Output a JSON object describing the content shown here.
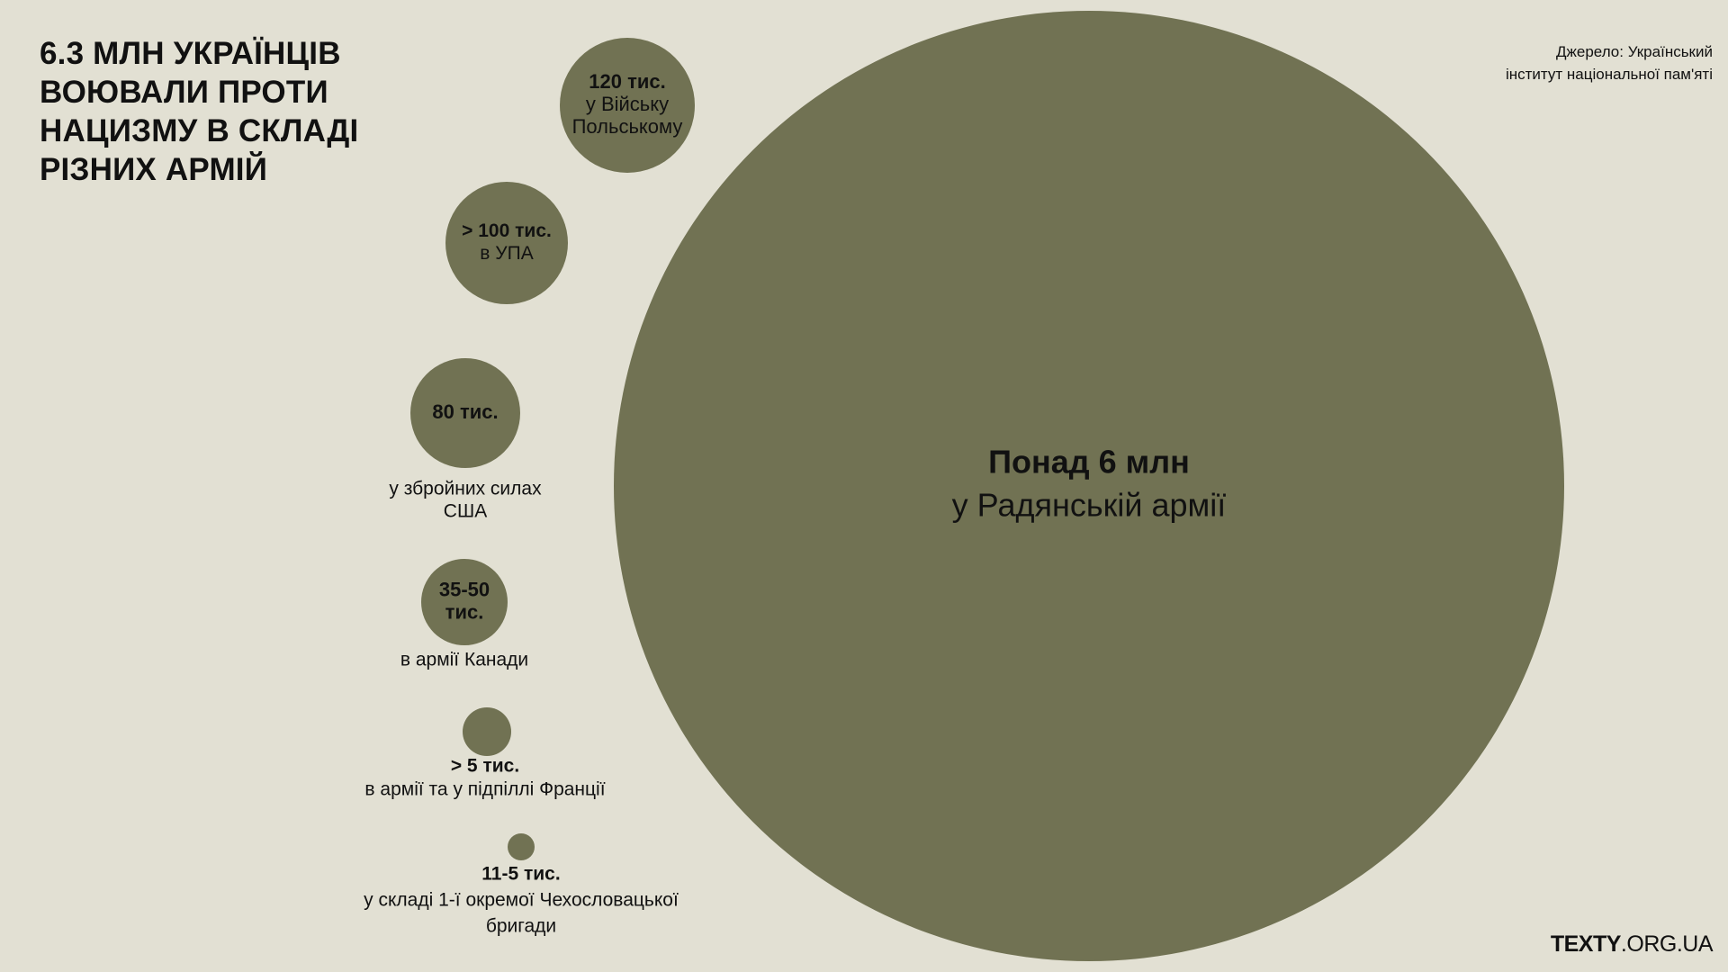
{
  "header": {
    "title": "6.3 МЛН УКРАЇНЦІВ\nВОЮВАЛИ ПРОТИ\nНАЦИЗМУ В СКЛАДІ\nРІЗНИХ АРМІЙ",
    "source": "Джерело: Український\nінститут національної пам'яті"
  },
  "brand": {
    "bold": "TEXTY",
    "normal": ".ORG.UA"
  },
  "colors": {
    "background": "#e2e0d3",
    "bubble": "#717253",
    "text": "#111111"
  },
  "chart_data": {
    "type": "bubble",
    "unit": "тис.",
    "items": [
      {
        "value_label": "Понад 6 млн",
        "label": "у Радянській армії",
        "value": 6000000
      },
      {
        "value_label": "120 тис.",
        "label": "у Війську Польському",
        "value": 120000
      },
      {
        "value_label": "> 100 тис.",
        "label": "в УПА",
        "value": 100000
      },
      {
        "value_label": "80 тис.",
        "label": "у збройних силах США",
        "value": 80000
      },
      {
        "value_label": "35-50 тис.",
        "label": "в армії Канади",
        "value": 50000
      },
      {
        "value_label": "> 5 тис.",
        "label": "в армії та у підпіллі Франції",
        "value": 5000
      },
      {
        "value_label": "11-5 тис.",
        "label": "у складі 1-ї окремої Чехословацької бригади",
        "value": 1500
      }
    ]
  }
}
